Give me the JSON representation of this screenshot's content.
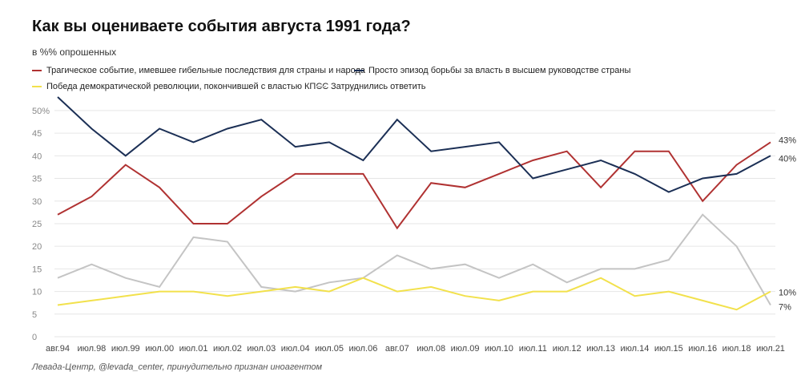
{
  "title": "Как вы оцениваете события августа 1991 года?",
  "subtitle": "в %% опрошенных",
  "source": "Левада-Центр, @levada_center, принудительно признан иноагентом",
  "chart_data": {
    "type": "line",
    "categories": [
      "авг.94",
      "июл.98",
      "июл.99",
      "июл.00",
      "июл.01",
      "июл.02",
      "июл.03",
      "июл.04",
      "июл.05",
      "июл.06",
      "авг.07",
      "июл.08",
      "июл.09",
      "июл.10",
      "июл.11",
      "июл.12",
      "июл.13",
      "июл.14",
      "июл.15",
      "июл.16",
      "июл.18",
      "июл.21"
    ],
    "ylim": [
      0,
      53
    ],
    "yticks": [
      0,
      5,
      10,
      15,
      20,
      25,
      30,
      35,
      40,
      45,
      50
    ],
    "ytick_labels": [
      "0",
      "5",
      "10",
      "15",
      "20",
      "25",
      "30",
      "35",
      "40",
      "45",
      "50%"
    ],
    "series": [
      {
        "name": "Трагическое событие, имевшее гибельные последствия для страны и народа",
        "color": "#b03232",
        "end_label": "43%",
        "values": [
          27,
          31,
          38,
          33,
          25,
          25,
          31,
          36,
          36,
          36,
          24,
          34,
          33,
          36,
          39,
          41,
          33,
          41,
          41,
          30,
          38,
          43
        ]
      },
      {
        "name": "Просто эпизод борьбы за власть в высшем руководстве страны",
        "color": "#1b2f55",
        "end_label": "40%",
        "values": [
          53,
          46,
          40,
          46,
          43,
          46,
          48,
          42,
          43,
          39,
          48,
          41,
          42,
          43,
          35,
          37,
          39,
          36,
          32,
          35,
          36,
          40
        ]
      },
      {
        "name": "Победа демократической революции, покончившей с властью КПСС",
        "color": "#f2e14c",
        "end_label": "10%",
        "values": [
          7,
          8,
          9,
          10,
          10,
          9,
          10,
          11,
          10,
          13,
          10,
          11,
          9,
          8,
          10,
          10,
          13,
          9,
          10,
          8,
          6,
          10
        ]
      },
      {
        "name": "Затруднились ответить",
        "color": "#c4c4c4",
        "end_label": "7%",
        "values": [
          13,
          16,
          13,
          11,
          22,
          21,
          11,
          10,
          12,
          13,
          18,
          15,
          16,
          13,
          16,
          12,
          15,
          15,
          17,
          27,
          20,
          7
        ]
      }
    ],
    "grid": true,
    "legend": "top-left"
  }
}
